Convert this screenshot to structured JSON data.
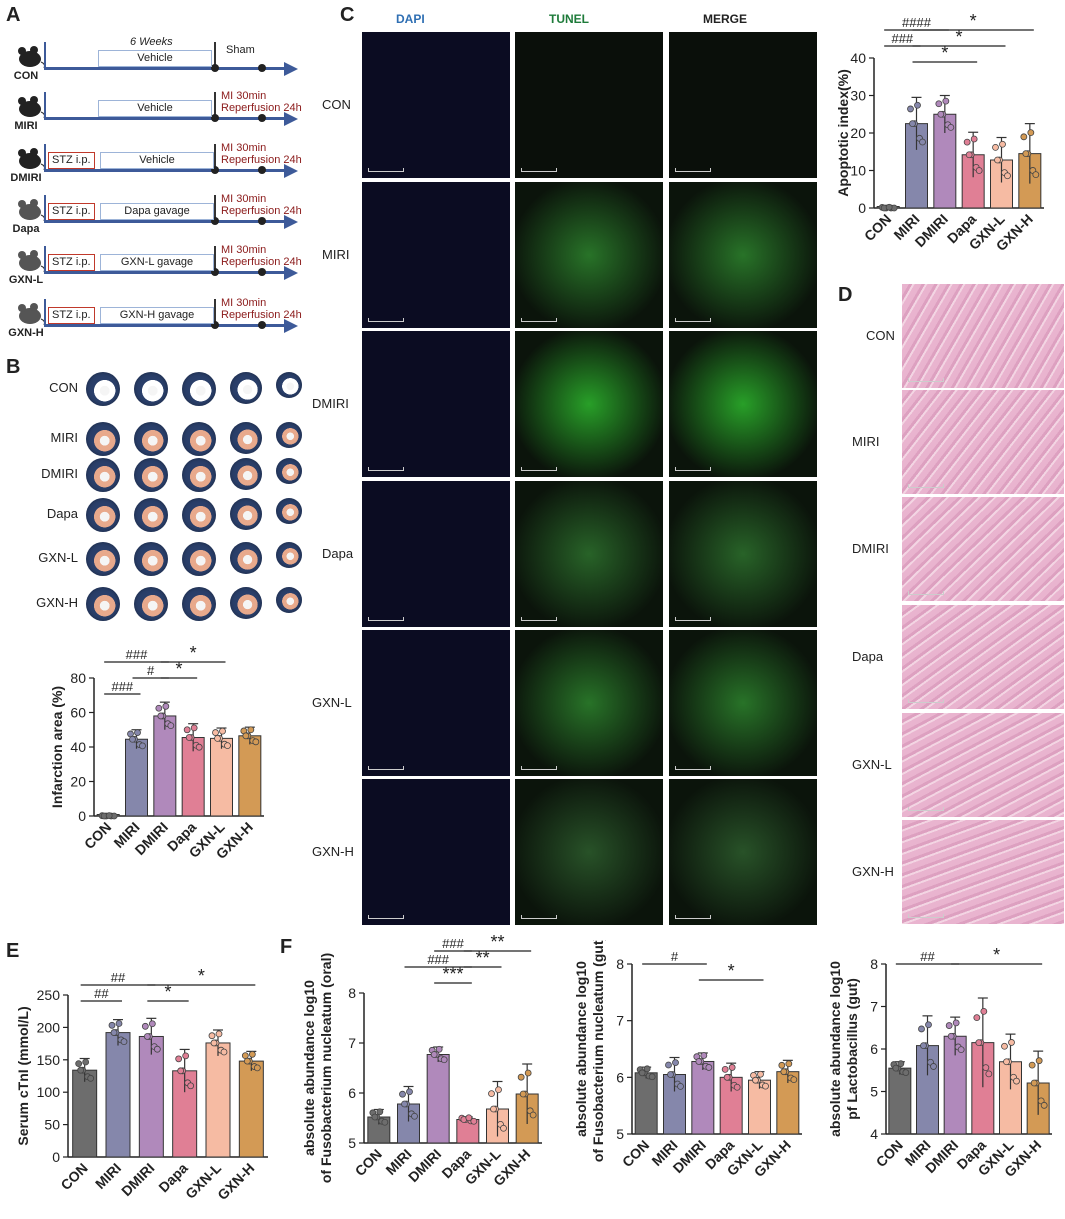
{
  "panels": {
    "A": "A",
    "B": "B",
    "C": "C",
    "D": "D",
    "E": "E",
    "F": "F"
  },
  "panel_a": {
    "duration": "6 Weeks",
    "rows": [
      {
        "group": "CON",
        "stz": "",
        "treatment": "Vehicle",
        "endpoint": "Sham"
      },
      {
        "group": "MIRI",
        "stz": "",
        "treatment": "Vehicle",
        "endpoint": "MI 30min\nReperfusion 24h"
      },
      {
        "group": "DMIRI",
        "stz": "STZ i.p.",
        "treatment": "Vehicle",
        "endpoint": "MI 30min\nReperfusion 24h"
      },
      {
        "group": "Dapa",
        "stz": "STZ i.p.",
        "treatment": "Dapa  gavage",
        "endpoint": "MI 30min\nReperfusion 24h"
      },
      {
        "group": "GXN-L",
        "stz": "STZ i.p.",
        "treatment": "GXN-L  gavage",
        "endpoint": "MI 30min\nReperfusion 24h"
      },
      {
        "group": "GXN-H",
        "stz": "STZ i.p.",
        "treatment": "GXN-H gavage",
        "endpoint": "MI 30min\nReperfusion 24h"
      }
    ]
  },
  "panel_b_rows": [
    "CON",
    "MIRI",
    "DMIRI",
    "Dapa",
    "GXN-L",
    "GXN-H"
  ],
  "panel_c": {
    "columns": [
      {
        "name": "DAPI",
        "color": "#2f6fb3"
      },
      {
        "name": "TUNEL",
        "color": "#1e7b3a"
      },
      {
        "name": "MERGE",
        "color": "#222222"
      }
    ],
    "rows": [
      "CON",
      "MIRI",
      "DMIRI",
      "Dapa",
      "GXN-L",
      "GXN-H"
    ]
  },
  "panel_d_rows": [
    "CON",
    "MIRI",
    "DMIRI",
    "Dapa",
    "GXN-L",
    "GXN-H"
  ],
  "group_colors": [
    "#6d6d6d",
    "#8587ab",
    "#b089bb",
    "#e07f95",
    "#f6bba3",
    "#d39a55"
  ],
  "chart_data": [
    {
      "id": "apoptotic",
      "type": "bar",
      "categories": [
        "CON",
        "MIRI",
        "DMIRI",
        "Dapa",
        "GXN-L",
        "GXN-H"
      ],
      "values": [
        0,
        22.5,
        25,
        14.2,
        12.8,
        14.5
      ],
      "errors": [
        0.3,
        7,
        5,
        6,
        6,
        8
      ],
      "ylabel": "Apoptotic index(%)",
      "ylim": [
        0,
        40
      ],
      "yticks": [
        0,
        10,
        20,
        30,
        40
      ],
      "annotations": [
        "####",
        "###",
        "*",
        "*",
        "*"
      ]
    },
    {
      "id": "infarction",
      "type": "bar",
      "categories": [
        "CON",
        "MIRI",
        "DMIRI",
        "Dapa",
        "GXN-L",
        "GXN-H"
      ],
      "values": [
        0,
        44.5,
        58,
        45.5,
        45,
        46.5
      ],
      "errors": [
        0.3,
        5.5,
        8,
        8,
        6,
        5
      ],
      "ylabel": "Infarction area (%)",
      "ylim": [
        0,
        80
      ],
      "yticks": [
        0,
        20,
        40,
        60,
        80
      ],
      "annotations": [
        "###",
        "###",
        "#",
        "*",
        "*"
      ]
    },
    {
      "id": "ctni",
      "type": "bar",
      "categories": [
        "CON",
        "MIRI",
        "DMIRI",
        "Dapa",
        "GXN-L",
        "GXN-H"
      ],
      "values": [
        134,
        192,
        186,
        133,
        176,
        148
      ],
      "errors": [
        18,
        20,
        28,
        33,
        20,
        15
      ],
      "ylabel": "Serum cTnI (mmol/L)",
      "ylim": [
        0,
        250
      ],
      "yticks": [
        0,
        50,
        100,
        150,
        200,
        250
      ],
      "annotations": [
        "##",
        "##",
        "*",
        "*"
      ]
    },
    {
      "id": "fuso_oral",
      "type": "bar",
      "categories": [
        "CON",
        "MIRI",
        "DMIRI",
        "Dapa",
        "GXN-L",
        "GXN-H"
      ],
      "values": [
        5.52,
        5.78,
        6.77,
        5.47,
        5.68,
        5.98
      ],
      "errors": [
        0.15,
        0.35,
        0.15,
        0.05,
        0.55,
        0.6
      ],
      "ylabel": "absolute abundance log10\nof Fusobacterium nucleatum (oral)",
      "ylim": [
        5,
        8
      ],
      "yticks": [
        5,
        6,
        7,
        8
      ],
      "annotations": [
        "###",
        "###",
        "***",
        "**",
        "**"
      ]
    },
    {
      "id": "fuso_gut",
      "type": "bar",
      "categories": [
        "CON",
        "MIRI",
        "DMIRI",
        "Dapa",
        "GXN-L",
        "GXN-H"
      ],
      "values": [
        6.08,
        6.05,
        6.28,
        6.0,
        5.95,
        6.1
      ],
      "errors": [
        0.1,
        0.3,
        0.15,
        0.25,
        0.15,
        0.2
      ],
      "ylabel": "absolute abundance log10\nof Fusobacterium nucleatum (gut)",
      "ylim": [
        5,
        8
      ],
      "yticks": [
        5,
        6,
        7,
        8
      ],
      "annotations": [
        "#",
        "*"
      ]
    },
    {
      "id": "lacto_gut",
      "type": "bar",
      "categories": [
        "CON",
        "MIRI",
        "DMIRI",
        "Dapa",
        "GXN-L",
        "GXN-H"
      ],
      "values": [
        5.55,
        6.08,
        6.3,
        6.15,
        5.7,
        5.2
      ],
      "errors": [
        0.15,
        0.7,
        0.45,
        1.05,
        0.65,
        0.75
      ],
      "ylabel": "absolute abundance log10\npf Lactobacillus (gut)",
      "ylim": [
        4,
        8
      ],
      "yticks": [
        4,
        5,
        6,
        7,
        8
      ],
      "annotations": [
        "##",
        "*"
      ]
    }
  ]
}
